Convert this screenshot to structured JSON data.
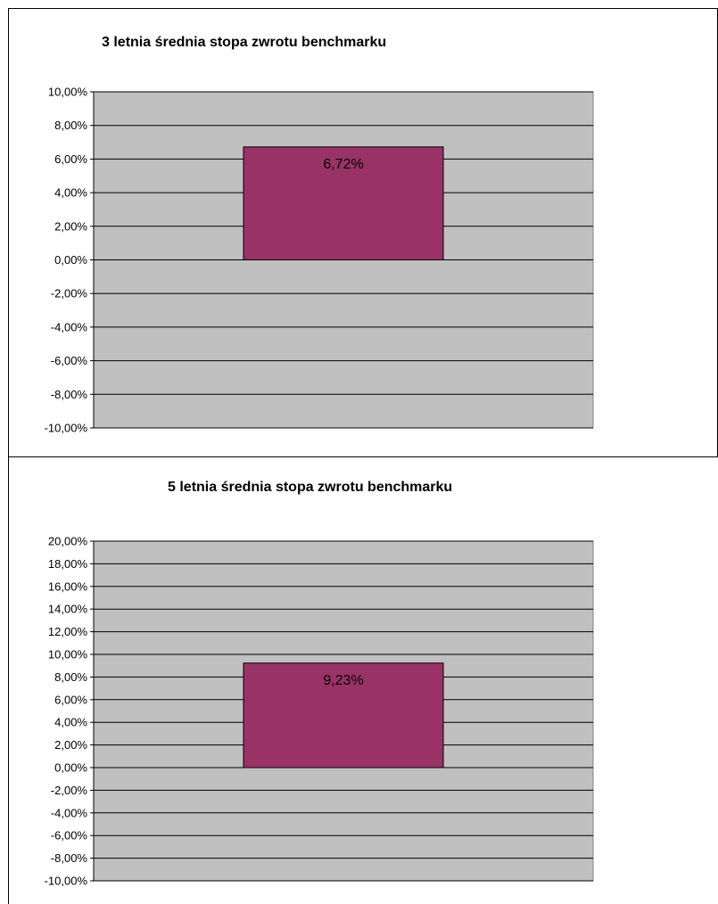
{
  "chart_data": [
    {
      "type": "bar",
      "title": "3 letnia średnia stopa zwrotu benchmarku",
      "categories": [
        ""
      ],
      "values": [
        6.72
      ],
      "data_labels": [
        "6,72%"
      ],
      "xlabel": "",
      "ylabel": "",
      "ylim": [
        -10,
        10
      ],
      "y_ticks": [
        "10,00%",
        "8,00%",
        "6,00%",
        "4,00%",
        "2,00%",
        "0,00%",
        "-2,00%",
        "-4,00%",
        "-6,00%",
        "-8,00%",
        "-10,00%"
      ],
      "grid": true,
      "legend": "none",
      "colors": {
        "bar": "#993366",
        "plot_background": "#c0c0c0",
        "gridline": "#000000"
      }
    },
    {
      "type": "bar",
      "title": "5 letnia średnia stopa zwrotu benchmarku",
      "categories": [
        ""
      ],
      "values": [
        9.23
      ],
      "data_labels": [
        "9,23%"
      ],
      "xlabel": "",
      "ylabel": "",
      "ylim": [
        -10,
        20
      ],
      "y_ticks": [
        "20,00%",
        "18,00%",
        "16,00%",
        "14,00%",
        "12,00%",
        "10,00%",
        "8,00%",
        "6,00%",
        "4,00%",
        "2,00%",
        "0,00%",
        "-2,00%",
        "-4,00%",
        "-6,00%",
        "-8,00%",
        "-10,00%"
      ],
      "grid": true,
      "legend": "none",
      "colors": {
        "bar": "#993366",
        "plot_background": "#c0c0c0",
        "gridline": "#000000"
      }
    }
  ]
}
